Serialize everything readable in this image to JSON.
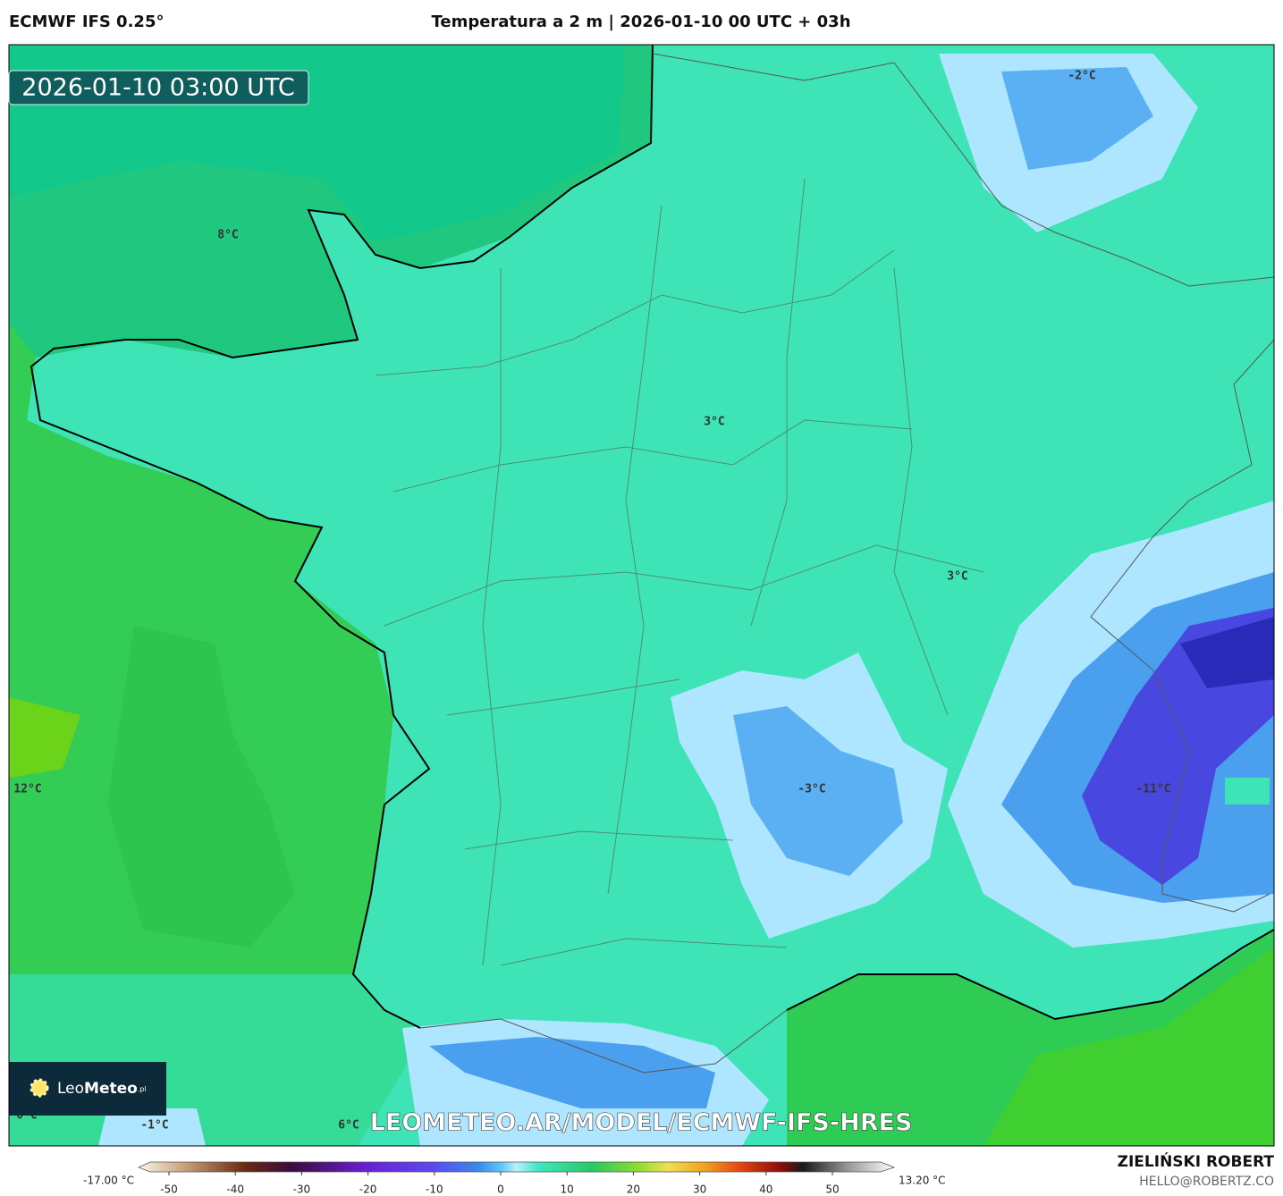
{
  "header": {
    "model": "ECMWF IFS 0.25°",
    "title": "Temperatura a 2 m | 2026-01-10 00 UTC + 03h"
  },
  "map": {
    "valid_time": "2026-01-10 03:00 UTC",
    "labels": [
      "8°C",
      "3°C",
      "3°C",
      "-3°C",
      "-11°C",
      "12°C",
      "-1°C",
      "6°C",
      "0°C",
      "-2°C"
    ],
    "watermark": "LEOMETEO.AR/MODEL/ECMWF-IFS-HRES",
    "logo": {
      "light": "Leo",
      "bold": "Meteo",
      "suffix": ".pl"
    }
  },
  "colorbar": {
    "min_label": "-17.00 °C",
    "max_label": "13.20 °C",
    "ticks": [
      -50,
      -40,
      -30,
      -20,
      -10,
      0,
      10,
      20,
      30,
      40,
      50
    ]
  },
  "footer": {
    "author": "ZIELIŃSKI ROBERT",
    "email": "HELLO@ROBERTZ.CO"
  }
}
